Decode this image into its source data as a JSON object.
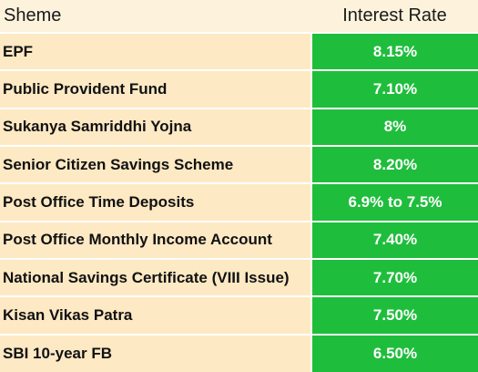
{
  "table": {
    "headers": {
      "scheme": "Sheme",
      "rate": "Interest Rate"
    },
    "rows": [
      {
        "scheme": "EPF",
        "rate": "8.15%"
      },
      {
        "scheme": "Public Provident Fund",
        "rate": "7.10%"
      },
      {
        "scheme": "Sukanya Samriddhi Yojna",
        "rate": "8%"
      },
      {
        "scheme": "Senior Citizen Savings Scheme",
        "rate": "8.20%"
      },
      {
        "scheme": "Post Office Time Deposits",
        "rate": "6.9% to 7.5%"
      },
      {
        "scheme": "Post Office Monthly Income Account",
        "rate": "7.40%"
      },
      {
        "scheme": "National Savings Certificate (VIII Issue)",
        "rate": "7.70%"
      },
      {
        "scheme": "Kisan Vikas Patra",
        "rate": "7.50%"
      },
      {
        "scheme": "SBI 10-year FB",
        "rate": "6.50%"
      }
    ],
    "colors": {
      "header_bg": "#fdf3dc",
      "scheme_bg": "#fde9c4",
      "rate_bg": "#1fbd3c",
      "rate_text": "#ffffff"
    }
  }
}
